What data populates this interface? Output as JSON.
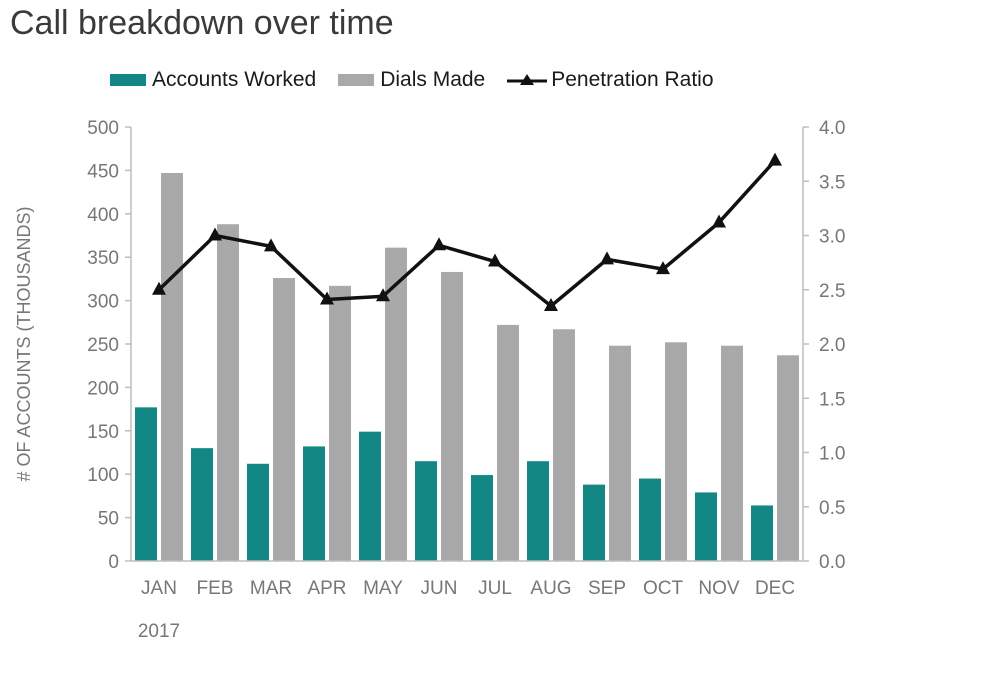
{
  "chart_data": {
    "type": "bar",
    "title": "Call breakdown over time",
    "categories": [
      "JAN",
      "FEB",
      "MAR",
      "APR",
      "MAY",
      "JUN",
      "JUL",
      "AUG",
      "SEP",
      "OCT",
      "NOV",
      "DEC"
    ],
    "year_label": "2017",
    "ylabel": "# OF ACCOUNTS (THOUSANDS)",
    "ylim": [
      0,
      500
    ],
    "yticks": [
      0,
      50,
      100,
      150,
      200,
      250,
      300,
      350,
      400,
      450,
      500
    ],
    "y2lim": [
      0,
      4.0
    ],
    "y2ticks": [
      "0.0",
      "0.5",
      "1.0",
      "1.5",
      "2.0",
      "2.5",
      "3.0",
      "3.5",
      "4.0"
    ],
    "legend_position": "top",
    "grid": false,
    "series": [
      {
        "name": "Accounts Worked",
        "type": "bar",
        "axis": "left",
        "color": "#138784",
        "values": [
          177,
          130,
          112,
          132,
          149,
          115,
          99,
          115,
          88,
          95,
          79,
          64
        ]
      },
      {
        "name": "Dials Made",
        "type": "bar",
        "axis": "left",
        "color": "#a9a9a9",
        "values": [
          447,
          388,
          326,
          317,
          361,
          333,
          272,
          267,
          248,
          252,
          248,
          237
        ]
      },
      {
        "name": "Penetration Ratio",
        "type": "line",
        "axis": "right",
        "color": "#111111",
        "marker": "triangle",
        "values": [
          2.5,
          3.0,
          2.9,
          2.41,
          2.44,
          2.91,
          2.76,
          2.35,
          2.78,
          2.69,
          3.12,
          3.69
        ]
      }
    ]
  }
}
